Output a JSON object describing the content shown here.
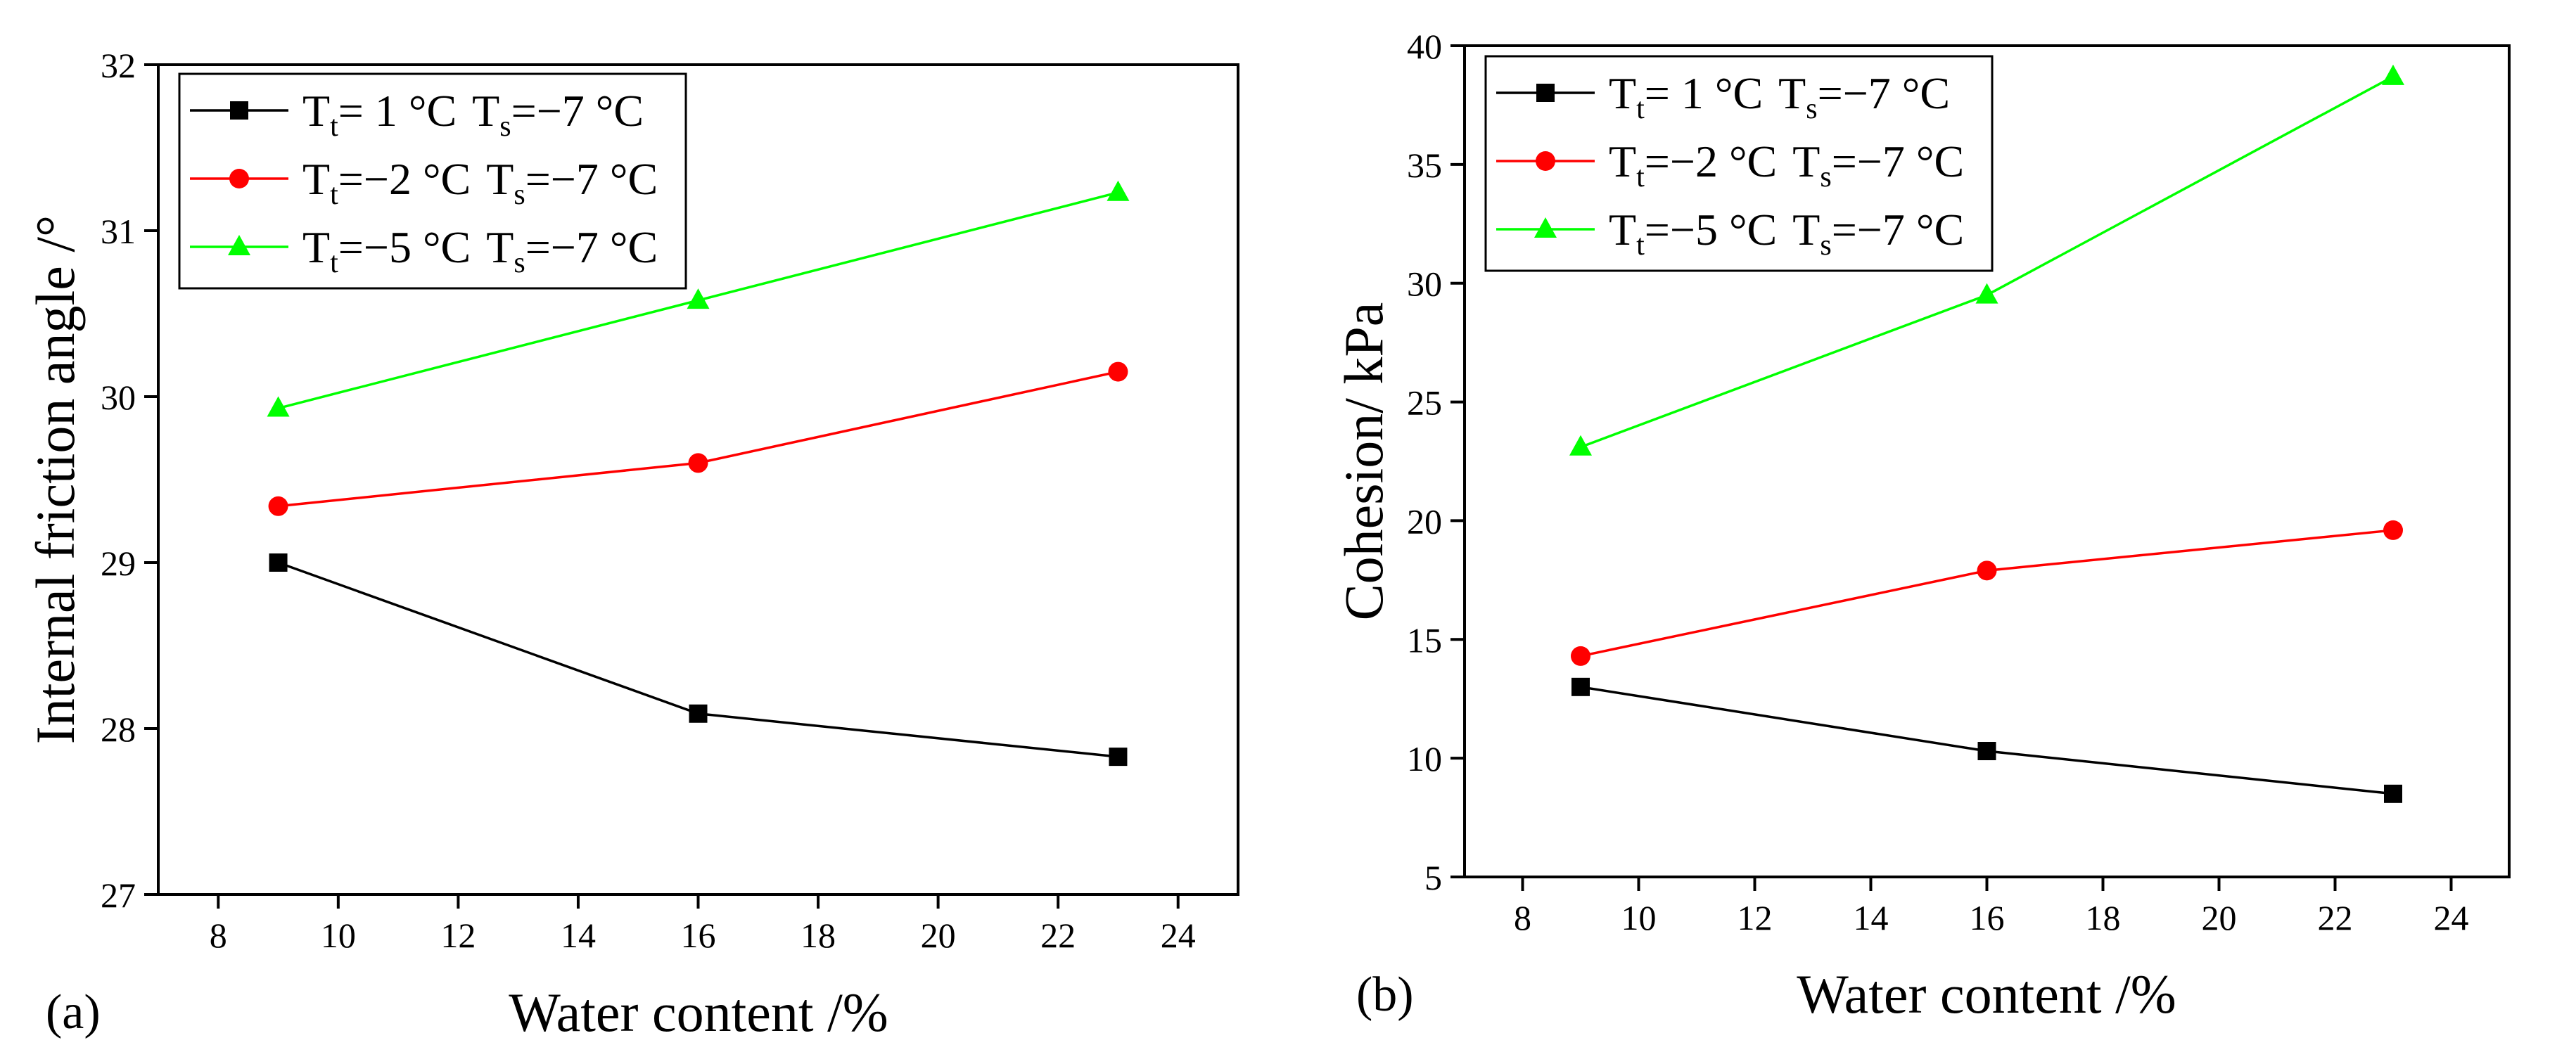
{
  "chart_data": [
    {
      "type": "line",
      "panel_label": "(a)",
      "xlabel": "Water content /%",
      "ylabel": "Internal friction angle /°",
      "xlim": [
        7,
        25
      ],
      "ylim": [
        27,
        32
      ],
      "xticks": [
        8,
        10,
        12,
        14,
        16,
        18,
        20,
        22,
        24
      ],
      "yticks": [
        27,
        28,
        29,
        30,
        31,
        32
      ],
      "x": [
        9,
        16,
        23
      ],
      "legend_position": "top-left",
      "series": [
        {
          "name": "Tt= 1 °C Ts=−7 °C",
          "tt_label": "T",
          "tt_sub": "t",
          "tt_value": "=  1 °C",
          "ts_label": "T",
          "ts_sub": "s",
          "ts_value": "=−7 °C",
          "color": "#000000",
          "marker": "square",
          "values": [
            29.0,
            28.09,
            27.83
          ]
        },
        {
          "name": "Tt=−2 °C Ts=−7 °C",
          "tt_label": "T",
          "tt_sub": "t",
          "tt_value": "=−2 °C",
          "ts_label": "T",
          "ts_sub": "s",
          "ts_value": "=−7 °C",
          "color": "#ff0000",
          "marker": "circle",
          "values": [
            29.34,
            29.6,
            30.15
          ]
        },
        {
          "name": "Tt=−5 °C Ts=−7 °C",
          "tt_label": "T",
          "tt_sub": "t",
          "tt_value": "=−5 °C",
          "ts_label": "T",
          "ts_sub": "s",
          "ts_value": "=−7 °C",
          "color": "#00ff00",
          "marker": "triangle",
          "values": [
            29.93,
            30.58,
            31.23
          ]
        }
      ]
    },
    {
      "type": "line",
      "panel_label": "(b)",
      "xlabel": "Water content /%",
      "ylabel": "Cohesion/ kPa",
      "xlim": [
        7,
        25
      ],
      "ylim": [
        5,
        40
      ],
      "xticks": [
        8,
        10,
        12,
        14,
        16,
        18,
        20,
        22,
        24
      ],
      "yticks": [
        5,
        10,
        15,
        20,
        25,
        30,
        35,
        40
      ],
      "x": [
        9,
        16,
        23
      ],
      "legend_position": "top-left",
      "series": [
        {
          "name": "Tt= 1 °C Ts=−7 °C",
          "tt_label": "T",
          "tt_sub": "t",
          "tt_value": "=  1 °C",
          "ts_label": "T",
          "ts_sub": "s",
          "ts_value": "=−7 °C",
          "color": "#000000",
          "marker": "square",
          "values": [
            13.0,
            10.3,
            8.5
          ]
        },
        {
          "name": "Tt=−2 °C Ts=−7 °C",
          "tt_label": "T",
          "tt_sub": "t",
          "tt_value": "=−2 °C",
          "ts_label": "T",
          "ts_sub": "s",
          "ts_value": "=−7 °C",
          "color": "#ff0000",
          "marker": "circle",
          "values": [
            14.3,
            17.9,
            19.6
          ]
        },
        {
          "name": "Tt=−5 °C Ts=−7 °C",
          "tt_label": "T",
          "tt_sub": "t",
          "tt_value": "=−5 °C",
          "ts_label": "T",
          "ts_sub": "s",
          "ts_value": "=−7 °C",
          "color": "#00ff00",
          "marker": "triangle",
          "values": [
            23.1,
            29.5,
            38.7
          ]
        }
      ]
    }
  ]
}
